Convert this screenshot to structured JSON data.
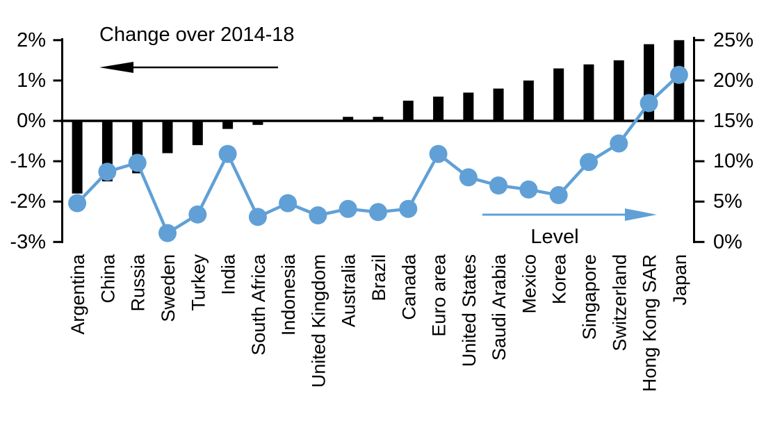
{
  "title": "Change over 2014-18",
  "chart_data": {
    "type": "combo",
    "categories": [
      "Argentina",
      "China",
      "Russia",
      "Sweden",
      "Turkey",
      "India",
      "South Africa",
      "Indonesia",
      "United Kingdom",
      "Australia",
      "Brazil",
      "Canada",
      "Euro area",
      "United States",
      "Saudi Arabia",
      "Mexico",
      "Korea",
      "Singapore",
      "Switzerland",
      "Hong Kong SAR",
      "Japan"
    ],
    "series": [
      {
        "name": "Change over 2014-18",
        "type": "bar",
        "axis": "left",
        "unit": "%",
        "color": "#000000",
        "arrow_direction": "left",
        "values": [
          -1.8,
          -1.5,
          -1.3,
          -0.8,
          -0.6,
          -0.2,
          -0.1,
          0,
          0,
          0.1,
          0.1,
          0.5,
          0.6,
          0.7,
          0.8,
          1.0,
          1.3,
          1.4,
          1.5,
          1.9,
          2.0
        ]
      },
      {
        "name": "Level",
        "type": "line",
        "axis": "right",
        "unit": "%",
        "color": "#60a0d6",
        "arrow_direction": "right",
        "values": [
          4.8,
          8.7,
          9.8,
          1.1,
          3.4,
          10.9,
          3.1,
          4.8,
          3.3,
          4.1,
          3.7,
          4.1,
          10.9,
          8.0,
          7.0,
          6.5,
          5.8,
          9.9,
          12.2,
          17.2,
          20.7
        ]
      }
    ],
    "left_axis": {
      "min": -3,
      "max": 2,
      "tick_values": [
        2,
        1,
        0,
        -1,
        -2,
        -3
      ],
      "tick_labels": [
        "2%",
        "1%",
        "0%",
        "-1%",
        "-2%",
        "-3%"
      ]
    },
    "right_axis": {
      "min": 0,
      "max": 25,
      "tick_values": [
        25,
        20,
        15,
        10,
        5,
        0
      ],
      "tick_labels": [
        "25%",
        "20%",
        "15%",
        "10%",
        "5%",
        "0%"
      ]
    },
    "grid": false,
    "legend_position": "in-plot labels with direction arrows"
  },
  "colors": {
    "bar": "#000000",
    "line": "#60a0d6",
    "axis": "#000000",
    "background": "#ffffff",
    "text": "#000000"
  }
}
